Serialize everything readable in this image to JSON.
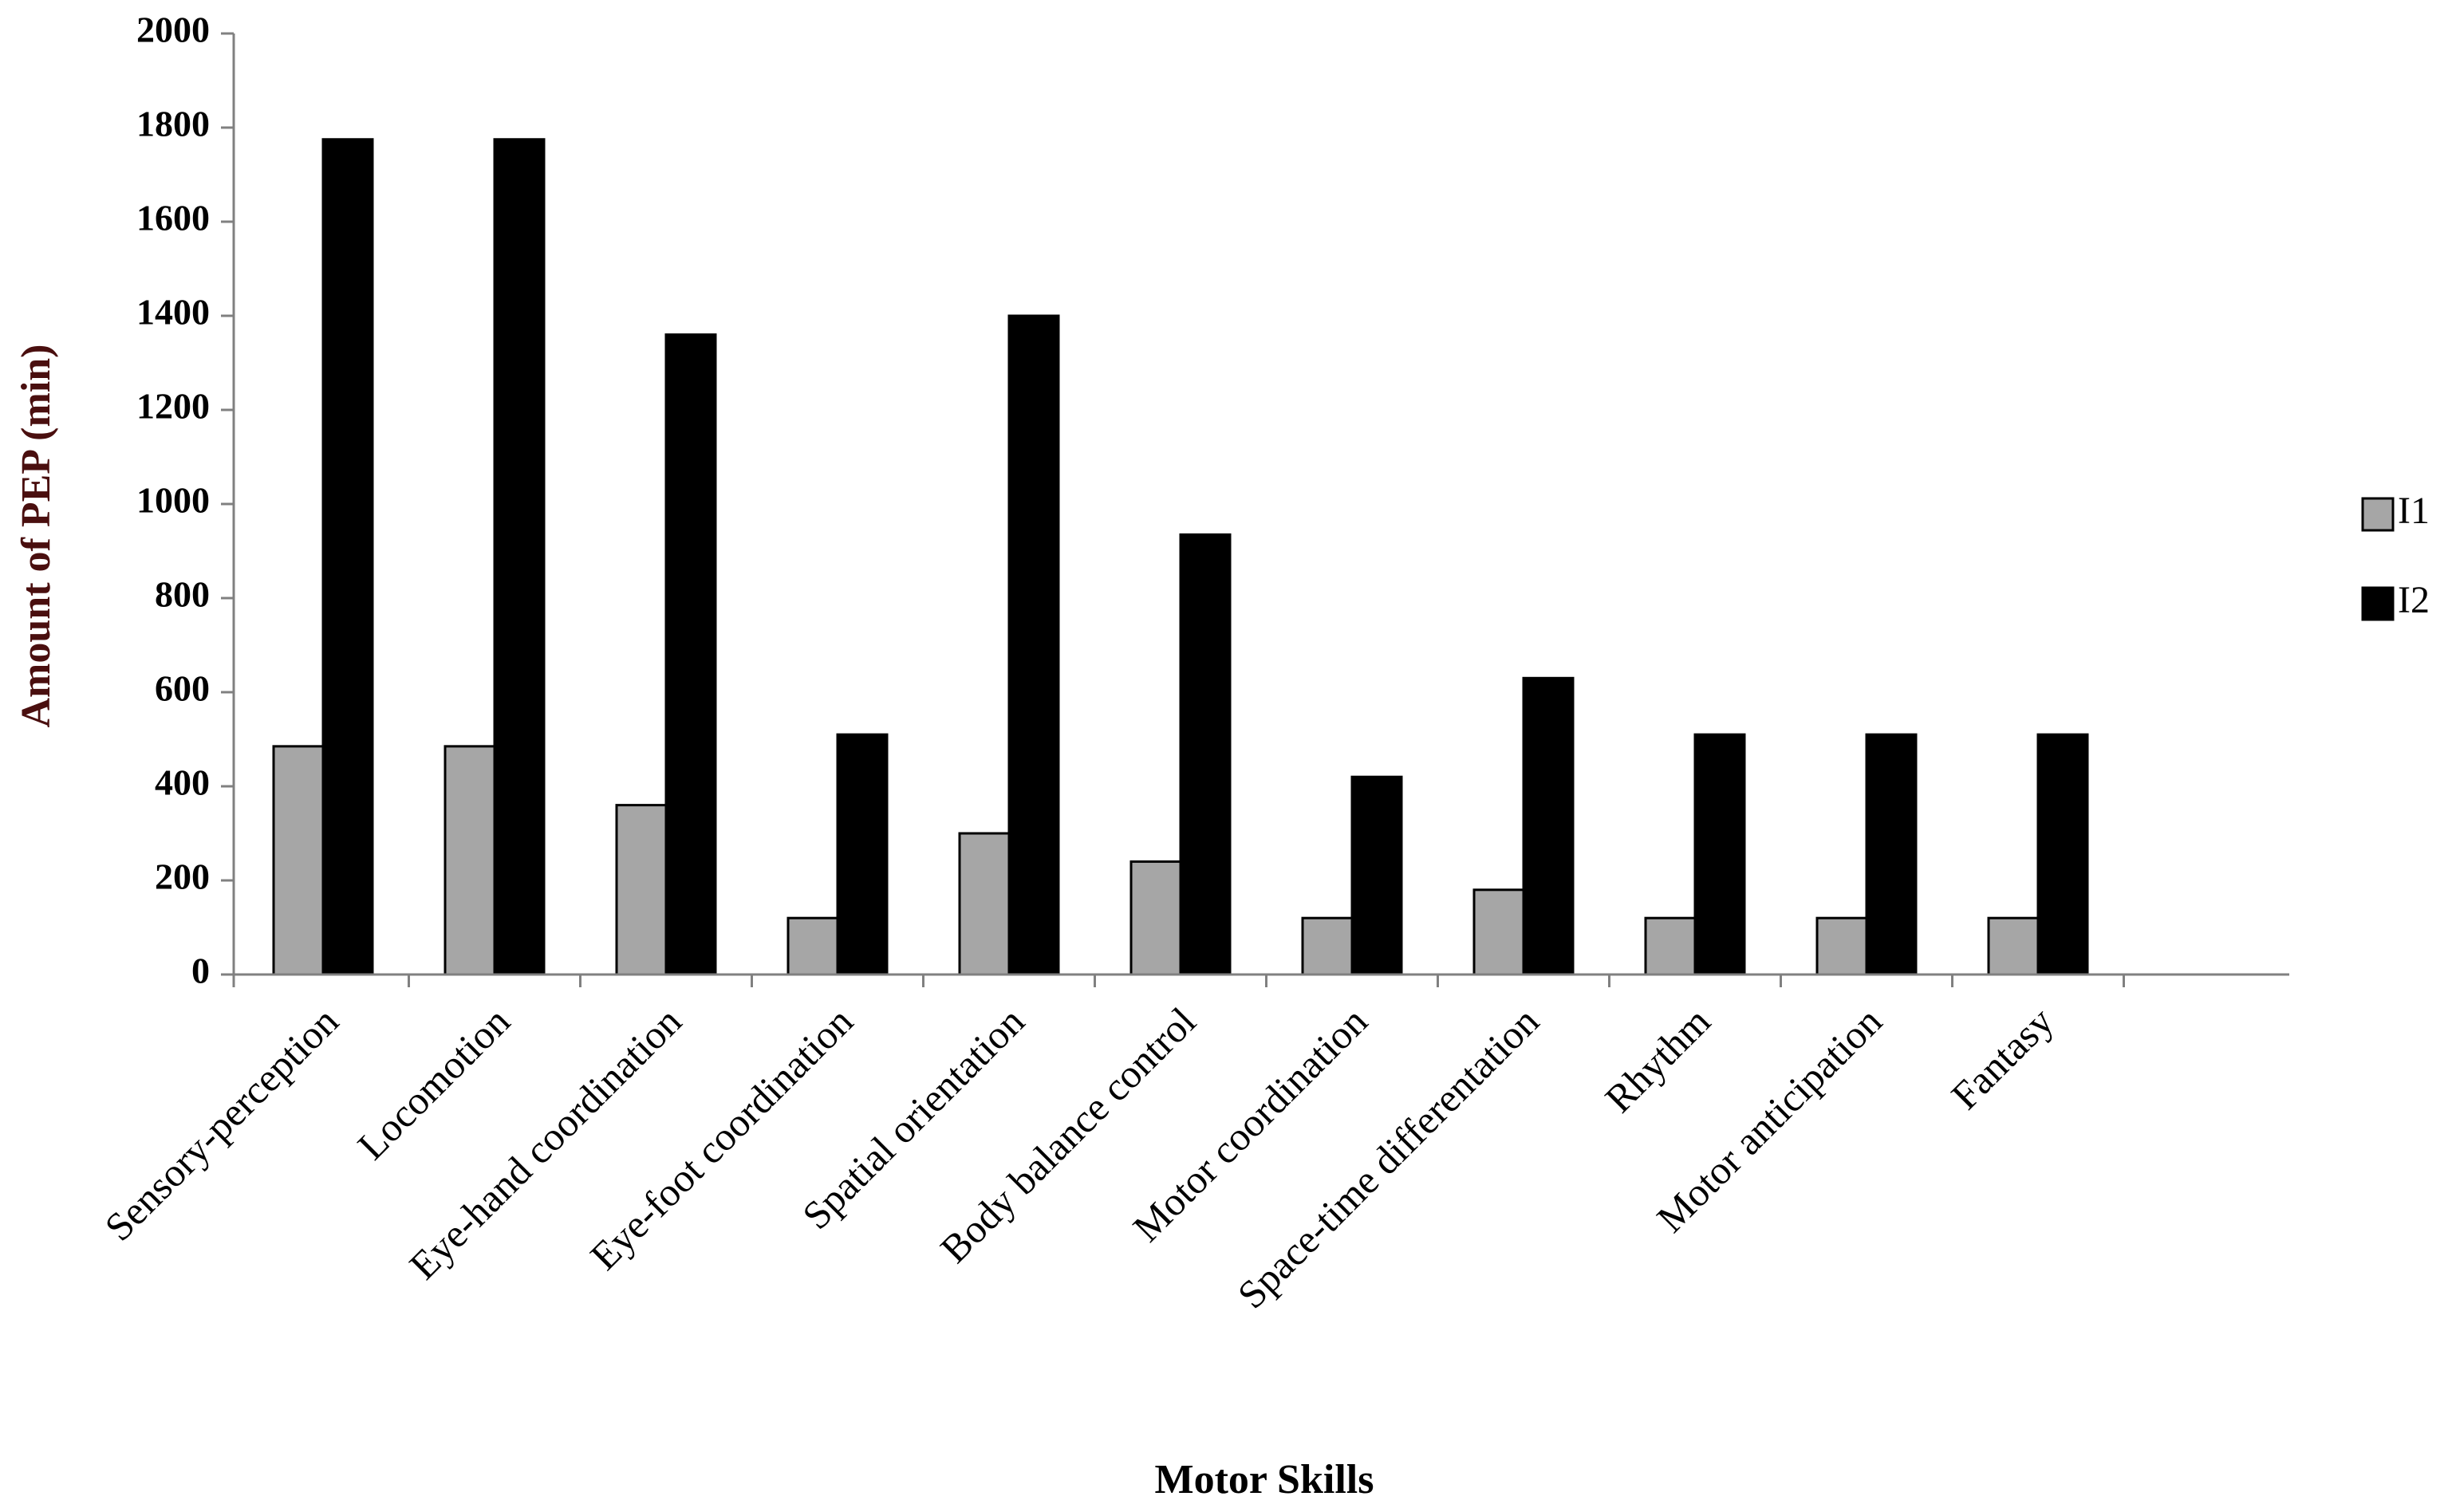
{
  "chart_data": {
    "type": "bar",
    "xlabel": "Motor  Skills",
    "ylabel": "Amount  of PEP  (min)",
    "ylim": [
      0,
      2000
    ],
    "yticks": [
      "0",
      "200",
      "400",
      "600",
      "800",
      "1000",
      "1200",
      "1400",
      "1600",
      "1800",
      "2000"
    ],
    "ytick_values": [
      0,
      200,
      400,
      600,
      800,
      1000,
      1200,
      1400,
      1600,
      1800,
      2000
    ],
    "grid": false,
    "legend_position": "right",
    "categories": [
      "Sensory-perception",
      "Locomotion",
      "Eye-hand coordination",
      "Eye-foot coordination",
      "Spatial orientation",
      "Body balance control",
      "Motor coordination",
      "Space-time differentation",
      "Rhythm",
      "Motor anticipation",
      "Fantasy"
    ],
    "series": [
      {
        "name": "I1",
        "color": "#a6a6a6",
        "values": [
          485,
          485,
          360,
          120,
          300,
          240,
          120,
          180,
          120,
          120,
          120
        ]
      },
      {
        "name": "I2",
        "color": "#000000",
        "values": [
          1775,
          1775,
          1360,
          510,
          1400,
          935,
          420,
          630,
          510,
          510,
          510
        ]
      }
    ],
    "colors": {
      "axis": "#808080",
      "ylabel": "#4a0f0f",
      "xlabel": "#000000"
    }
  }
}
